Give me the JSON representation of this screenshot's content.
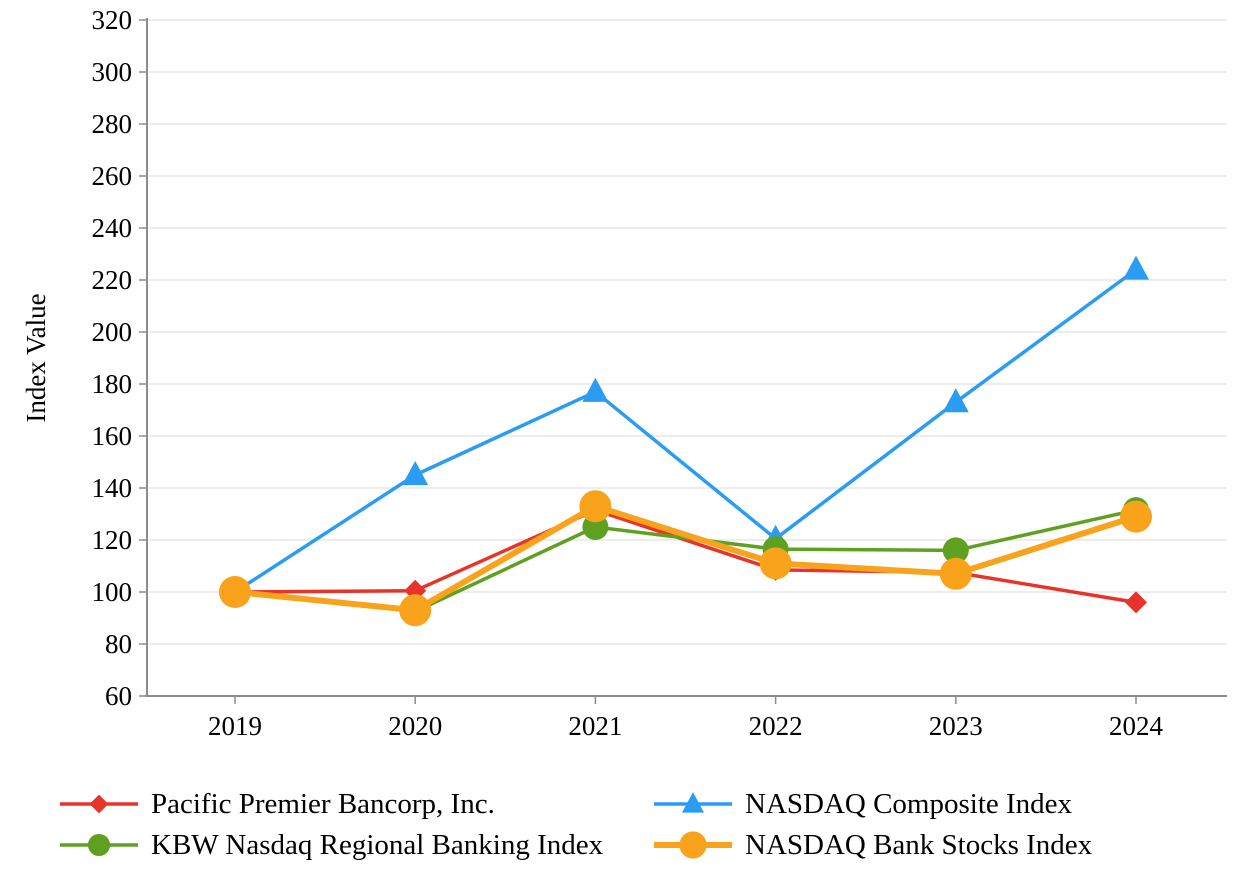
{
  "chart_data": {
    "type": "line",
    "title": "",
    "xlabel": "",
    "ylabel": "Index Value",
    "ylim": [
      60,
      320
    ],
    "ytick_step": 20,
    "grid": "horizontal",
    "legend_position": "bottom",
    "categories": [
      "2019",
      "2020",
      "2021",
      "2022",
      "2023",
      "2024"
    ],
    "series": [
      {
        "name": "Pacific Premier Bancorp, Inc.",
        "color": "#E9332A",
        "marker": "diamond",
        "marker_size": 11,
        "line_width": 3.5,
        "values": [
          100,
          100.5,
          131.5,
          108.5,
          107.5,
          96
        ]
      },
      {
        "name": "NASDAQ Composite Index",
        "color": "#2B9CF3",
        "marker": "triangle",
        "marker_size": 14,
        "line_width": 3.5,
        "values": [
          100,
          145,
          177,
          120.5,
          173,
          224
        ]
      },
      {
        "name": "KBW Nasdaq Regional Banking Index",
        "color": "#5FA021",
        "marker": "circle",
        "marker_size": 13,
        "line_width": 3.5,
        "values": [
          100,
          92.5,
          125,
          116.5,
          116,
          131.5
        ]
      },
      {
        "name": "NASDAQ Bank Stocks Index",
        "color": "#F9A31C",
        "marker": "circle",
        "marker_size": 16,
        "line_width": 6,
        "values": [
          100,
          93,
          133,
          111,
          107,
          129
        ]
      }
    ]
  }
}
